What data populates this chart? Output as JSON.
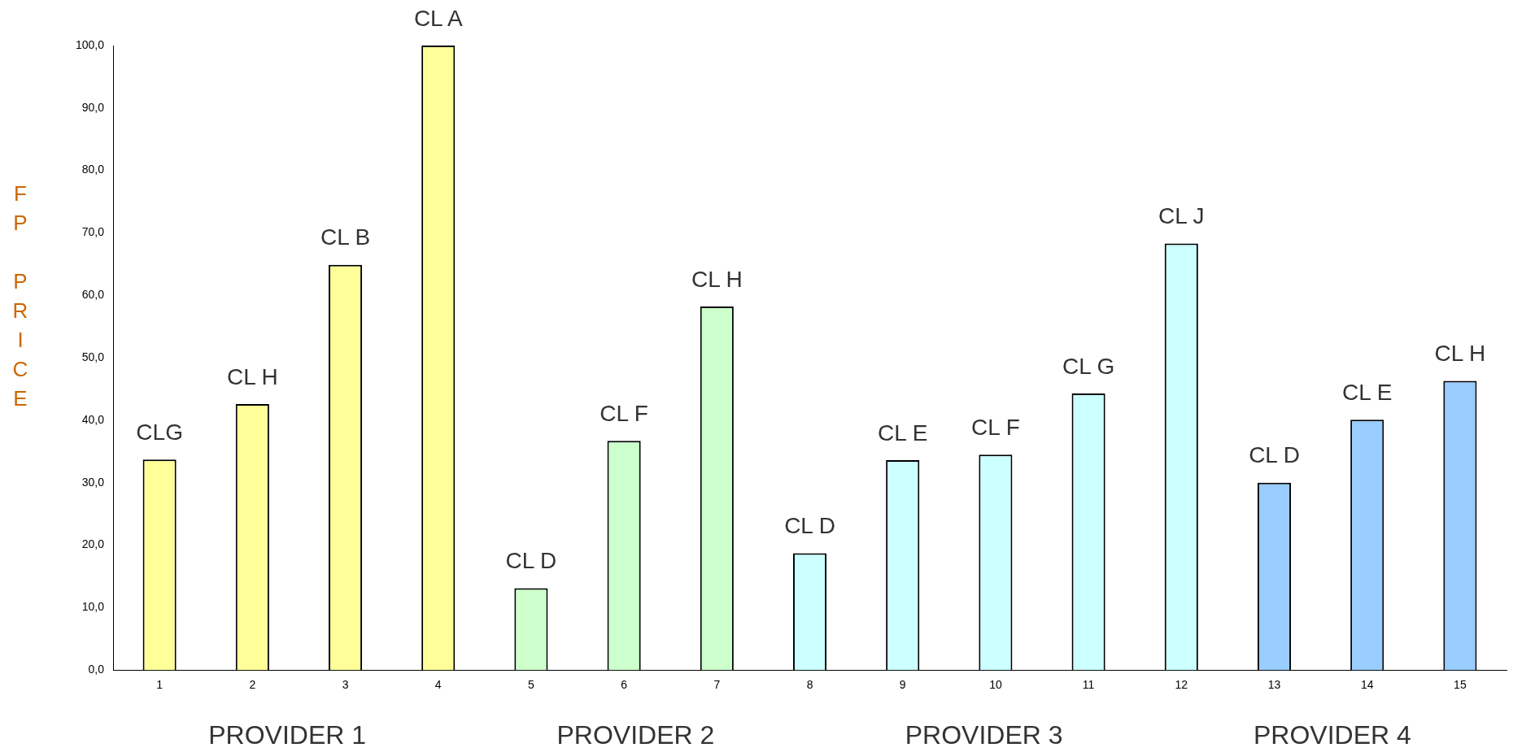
{
  "chart_data": {
    "type": "bar",
    "ylabel": "FP PRICE",
    "categories": [
      "1",
      "2",
      "3",
      "4",
      "5",
      "6",
      "7",
      "8",
      "9",
      "10",
      "11",
      "12",
      "13",
      "14",
      "15"
    ],
    "values": [
      33.7,
      42.6,
      64.9,
      100,
      13.1,
      36.7,
      58.2,
      18.7,
      33.6,
      34.5,
      44.3,
      68.3,
      30.0,
      40.1,
      46.3
    ],
    "colors": [
      "#ffff99",
      "#ffff99",
      "#ffff99",
      "#ffff99",
      "#ccffcc",
      "#ccffcc",
      "#ccffcc",
      "#ccffff",
      "#ccffff",
      "#ccffff",
      "#ccffff",
      "#ccffff",
      "#99ccff",
      "#99ccff",
      "#99ccff"
    ],
    "ylim": [
      0,
      100
    ],
    "yticks": [
      {
        "value": 0,
        "label": "0,0"
      },
      {
        "value": 10,
        "label": "10,0"
      },
      {
        "value": 20,
        "label": "20,0"
      },
      {
        "value": 30,
        "label": "30,0"
      },
      {
        "value": 40,
        "label": "40,0"
      },
      {
        "value": 50,
        "label": "50,0"
      },
      {
        "value": 60,
        "label": "60,0"
      },
      {
        "value": 70,
        "label": "70,0"
      },
      {
        "value": 80,
        "label": "80,0"
      },
      {
        "value": 90,
        "label": "90,0"
      },
      {
        "value": 100,
        "label": "100,0"
      }
    ],
    "grid": false,
    "legend": false,
    "annotations": [
      {
        "text": "CLG",
        "x": "1",
        "y": 33.7
      },
      {
        "text": "CL H",
        "x": "2",
        "y": 42.6
      },
      {
        "text": "CL B",
        "x": "3",
        "y": 64.9
      },
      {
        "text": "CL A",
        "x": "4",
        "y": 100
      },
      {
        "text": "CL D",
        "x": "5",
        "y": 13.1
      },
      {
        "text": "CL F",
        "x": "6",
        "y": 36.7
      },
      {
        "text": "CL H",
        "x": "7",
        "y": 58.2
      },
      {
        "text": "CL D",
        "x": "8",
        "y": 18.7
      },
      {
        "text": "CL E",
        "x": "9",
        "y": 33.6
      },
      {
        "text": "CL F",
        "x": "10",
        "y": 34.5
      },
      {
        "text": "CL G",
        "x": "11",
        "y": 44.3
      },
      {
        "text": "CL J",
        "x": "12",
        "y": 68.3
      },
      {
        "text": "CL D",
        "x": "13",
        "y": 30.0
      },
      {
        "text": "CL E",
        "x": "14",
        "y": 40.1
      },
      {
        "text": "CL H",
        "x": "15",
        "y": 46.3
      },
      "PROVIDER 1",
      "PROVIDER 2",
      "PROVIDER 3",
      "PROVIDER 4"
    ]
  }
}
